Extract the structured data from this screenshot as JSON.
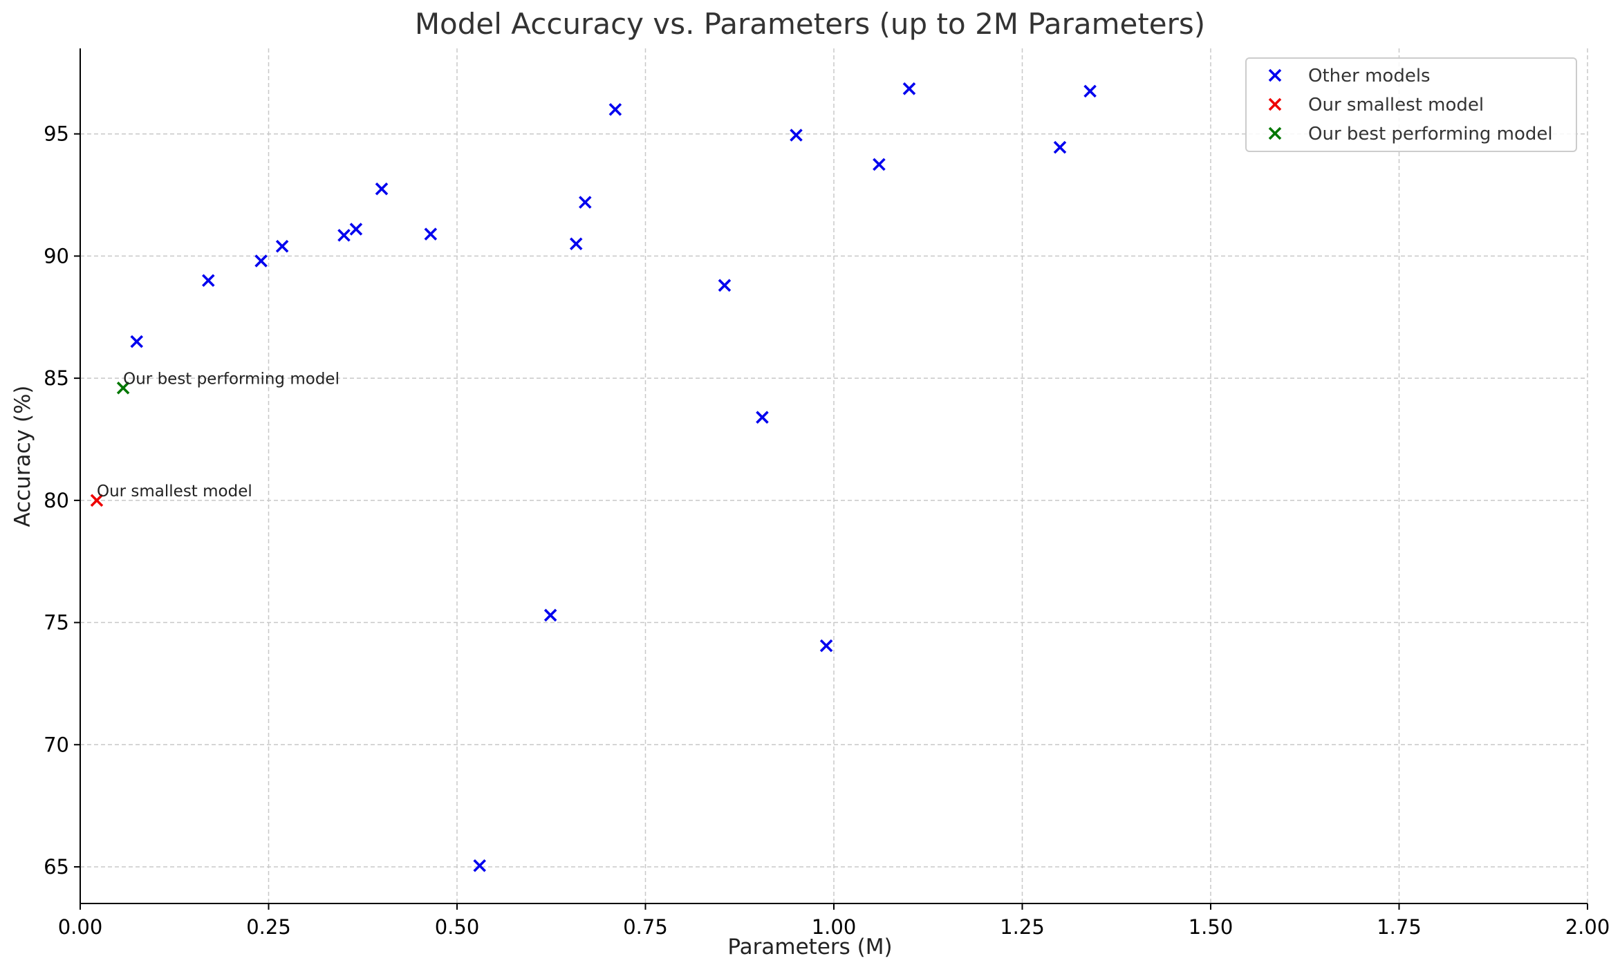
{
  "chart_data": {
    "type": "scatter",
    "title": "Model Accuracy vs. Parameters (up to 2M Parameters)",
    "xlabel": "Parameters (M)",
    "ylabel": "Accuracy (%)",
    "xlim": [
      0,
      2
    ],
    "ylim": [
      63.5,
      98.5
    ],
    "x_ticks": [
      "0.00",
      "0.25",
      "0.50",
      "0.75",
      "1.00",
      "1.25",
      "1.50",
      "1.75",
      "2.00"
    ],
    "x_tick_values": [
      0,
      0.25,
      0.5,
      0.75,
      1.0,
      1.25,
      1.5,
      1.75,
      2.0
    ],
    "y_ticks": [
      "65",
      "70",
      "75",
      "80",
      "85",
      "90",
      "95"
    ],
    "y_tick_values": [
      65,
      70,
      75,
      80,
      85,
      90,
      95
    ],
    "grid": true,
    "legend_position": "top-right",
    "marker": "x",
    "series": [
      {
        "name": "Other models",
        "color": "#0000ee",
        "points": [
          [
            0.075,
            86.5
          ],
          [
            0.17,
            89.0
          ],
          [
            0.24,
            89.8
          ],
          [
            0.268,
            90.4
          ],
          [
            0.35,
            90.85
          ],
          [
            0.366,
            91.1
          ],
          [
            0.4,
            92.75
          ],
          [
            0.465,
            90.9
          ],
          [
            0.53,
            65.05
          ],
          [
            0.624,
            75.3
          ],
          [
            0.658,
            90.5
          ],
          [
            0.67,
            92.2
          ],
          [
            0.71,
            96.0
          ],
          [
            0.855,
            88.8
          ],
          [
            0.905,
            83.4
          ],
          [
            0.95,
            94.95
          ],
          [
            0.99,
            74.05
          ],
          [
            1.06,
            93.75
          ],
          [
            1.1,
            96.85
          ],
          [
            1.3,
            94.45
          ],
          [
            1.34,
            96.75
          ]
        ]
      },
      {
        "name": "Our smallest model",
        "color": "#ee0000",
        "points": [
          [
            0.022,
            80.0
          ]
        ]
      },
      {
        "name": "Our best performing model",
        "color": "#007700",
        "points": [
          [
            0.057,
            84.6
          ]
        ]
      }
    ],
    "annotations": [
      {
        "text": "Our best performing model",
        "x": 0.057,
        "y": 84.6
      },
      {
        "text": "Our smallest model",
        "x": 0.022,
        "y": 80.0
      }
    ]
  }
}
